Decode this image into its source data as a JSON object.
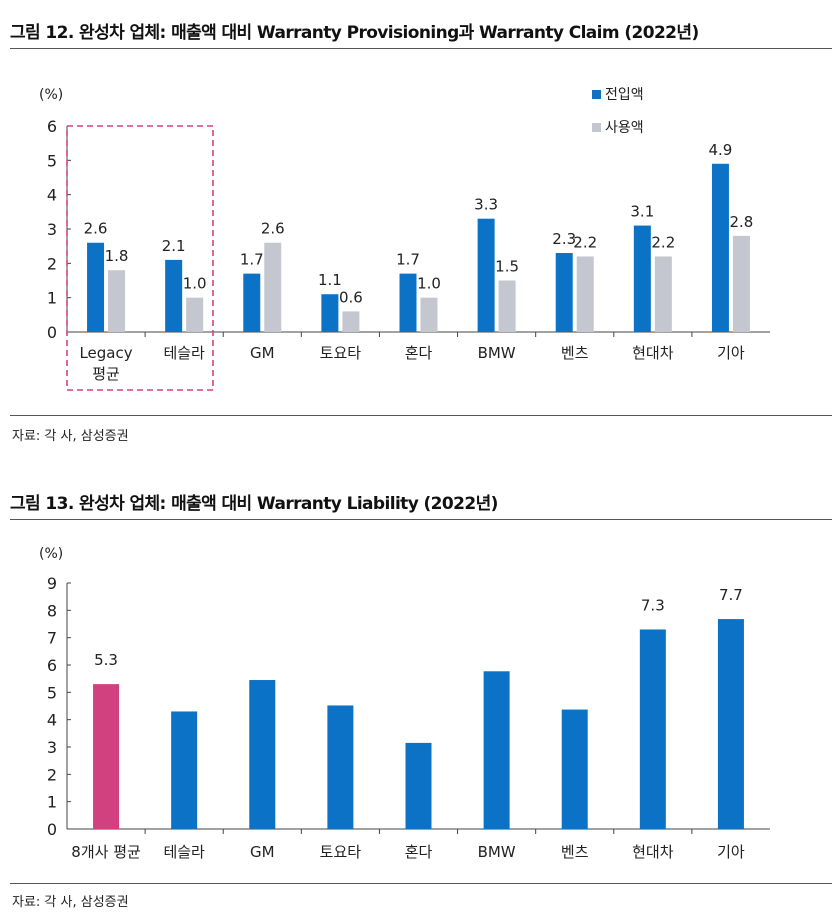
{
  "figure12": {
    "title": "그림 12. 완성차 업체: 매출액 대비 Warranty Provisioning과 Warranty Claim (2022년)",
    "source": "자료: 각 사, 삼성증권",
    "legend": [
      {
        "label": "전입액",
        "color": "#0B72C6"
      },
      {
        "label": "사용액",
        "color": "#C4C7CF"
      }
    ]
  },
  "figure13": {
    "title": "그림 13. 완성차 업체: 매출액 대비 Warranty Liability (2022년)",
    "source": "자료: 각 사, 삼성증권"
  },
  "chart_data": [
    {
      "type": "bar",
      "title": "그림 12. 완성차 업체: 매출액 대비 Warranty Provisioning과 Warranty Claim (2022년)",
      "ylabel": "(%)",
      "ylim": [
        0,
        6
      ],
      "yticks": [
        0,
        1,
        2,
        3,
        4,
        5,
        6
      ],
      "categories": [
        "Legacy 평균",
        "테슬라",
        "GM",
        "토요타",
        "혼다",
        "BMW",
        "벤츠",
        "현대차",
        "기아"
      ],
      "series": [
        {
          "name": "전입액",
          "color": "#0B72C6",
          "values": [
            2.6,
            2.1,
            1.7,
            1.1,
            1.7,
            3.3,
            2.3,
            3.1,
            4.9
          ],
          "labels": [
            "2.6",
            "2.1",
            "1.7",
            "1.1",
            "1.7",
            "3.3",
            "2.3",
            "3.1",
            "4.9"
          ]
        },
        {
          "name": "사용액",
          "color": "#C4C7CF",
          "values": [
            1.8,
            1.0,
            2.6,
            0.6,
            1.0,
            1.5,
            2.2,
            2.2,
            2.8
          ],
          "labels": [
            "1.8",
            "1.0",
            "2.6",
            "0.6",
            "1.0",
            "1.5",
            "2.2",
            "2.2",
            "2.8"
          ]
        }
      ],
      "legend_position": "top-right",
      "highlight": {
        "categories": [
          "Legacy 평균",
          "테슬라"
        ],
        "style": "dashed box",
        "color": "#D6427F"
      },
      "grid": false
    },
    {
      "type": "bar",
      "title": "그림 13. 완성차 업체: 매출액 대비 Warranty Liability (2022년)",
      "ylabel": "(%)",
      "ylim": [
        0,
        9
      ],
      "yticks": [
        0,
        1,
        2,
        3,
        4,
        5,
        6,
        7,
        8,
        9
      ],
      "categories": [
        "8개사 평균",
        "테슬라",
        "GM",
        "토요타",
        "혼다",
        "BMW",
        "벤츠",
        "현대차",
        "기아"
      ],
      "values": [
        5.3,
        4.3,
        5.45,
        4.52,
        3.15,
        5.77,
        4.37,
        7.3,
        7.68
      ],
      "labels": [
        "5.3",
        "",
        "",
        "",
        "",
        "",
        "",
        "7.3",
        "7.7"
      ],
      "colors": [
        "#D1407F",
        "#0B72C6",
        "#0B72C6",
        "#0B72C6",
        "#0B72C6",
        "#0B72C6",
        "#0B72C6",
        "#0B72C6",
        "#0B72C6"
      ],
      "grid": false
    }
  ]
}
